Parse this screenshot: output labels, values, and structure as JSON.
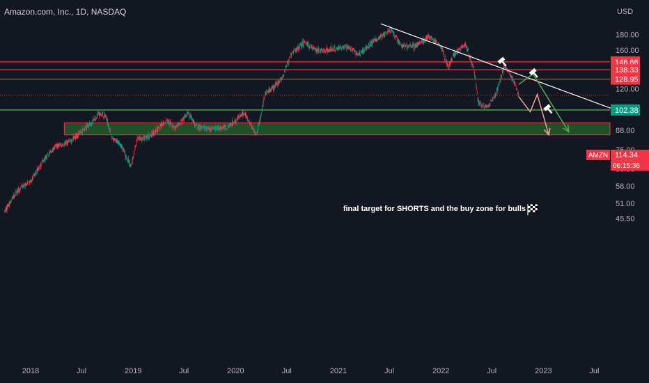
{
  "header": {
    "title": "Amazon.com, Inc., 1D, NASDAQ"
  },
  "price_axis": {
    "currency": "USD",
    "ticks": [
      "180.00",
      "160.00",
      "120.00",
      "88.00",
      "76.00",
      "66.00",
      "58.00",
      "51.00",
      "45.50"
    ]
  },
  "time_axis": {
    "ticks": [
      "2018",
      "Jul",
      "2019",
      "Jul",
      "2020",
      "Jul",
      "2021",
      "Jul",
      "2022",
      "Jul",
      "2023",
      "Jul"
    ]
  },
  "annotation": {
    "text": "final target for SHORTS and the buy zone for bulls",
    "icon": "checkered-flag-icon"
  },
  "level_labels": [
    {
      "price": 146.66,
      "text": "146.66",
      "color": "#f23645"
    },
    {
      "price": 138.33,
      "text": "138.33",
      "color": "#f23645"
    },
    {
      "price": 128.95,
      "text": "128.95",
      "color": "#f23645"
    },
    {
      "price": 102.38,
      "text": "102.38",
      "color": "#089981"
    }
  ],
  "last_price": {
    "symbol": "AMZN",
    "value": "114.34",
    "countdown": "06:15:36",
    "color": "#f23645"
  },
  "colors": {
    "background": "#131722",
    "up_candle": "#089981",
    "down_candle": "#f23645",
    "resistance": "#f23645",
    "support": "#4caf50",
    "zone_fill": "#2e7d32",
    "trendline": "#ffffff",
    "arrow_green": "#4caf50",
    "arrow_pink": "#f7a29a"
  },
  "chart_data": {
    "type": "candlestick",
    "title": "Amazon.com, Inc., 1D, NASDAQ",
    "y_unit": "USD",
    "y_scale": "log",
    "ylim": [
      44,
      215
    ],
    "xlim": [
      "2017-10-01",
      "2023-09-15"
    ],
    "close_series": [
      {
        "date": "2017-10-01",
        "close": 48
      },
      {
        "date": "2017-11-15",
        "close": 56
      },
      {
        "date": "2018-01-01",
        "close": 60
      },
      {
        "date": "2018-02-15",
        "close": 70
      },
      {
        "date": "2018-04-01",
        "close": 78
      },
      {
        "date": "2018-05-15",
        "close": 80
      },
      {
        "date": "2018-06-15",
        "close": 85
      },
      {
        "date": "2018-08-01",
        "close": 92
      },
      {
        "date": "2018-09-01",
        "close": 100
      },
      {
        "date": "2018-09-25",
        "close": 98
      },
      {
        "date": "2018-10-20",
        "close": 82
      },
      {
        "date": "2018-11-15",
        "close": 80
      },
      {
        "date": "2018-12-24",
        "close": 67
      },
      {
        "date": "2019-01-15",
        "close": 82
      },
      {
        "date": "2019-03-01",
        "close": 84
      },
      {
        "date": "2019-05-01",
        "close": 95
      },
      {
        "date": "2019-06-01",
        "close": 89
      },
      {
        "date": "2019-07-15",
        "close": 100
      },
      {
        "date": "2019-08-15",
        "close": 90
      },
      {
        "date": "2019-10-15",
        "close": 89
      },
      {
        "date": "2019-12-01",
        "close": 90
      },
      {
        "date": "2020-02-01",
        "close": 100
      },
      {
        "date": "2020-03-16",
        "close": 85
      },
      {
        "date": "2020-04-15",
        "close": 115
      },
      {
        "date": "2020-05-15",
        "close": 121
      },
      {
        "date": "2020-06-15",
        "close": 130
      },
      {
        "date": "2020-07-15",
        "close": 155
      },
      {
        "date": "2020-09-01",
        "close": 170
      },
      {
        "date": "2020-10-15",
        "close": 160
      },
      {
        "date": "2020-12-01",
        "close": 160
      },
      {
        "date": "2021-02-01",
        "close": 165
      },
      {
        "date": "2021-03-15",
        "close": 155
      },
      {
        "date": "2021-05-01",
        "close": 170
      },
      {
        "date": "2021-07-08",
        "close": 186
      },
      {
        "date": "2021-08-15",
        "close": 165
      },
      {
        "date": "2021-10-01",
        "close": 165
      },
      {
        "date": "2021-11-19",
        "close": 177
      },
      {
        "date": "2022-01-01",
        "close": 165
      },
      {
        "date": "2022-01-28",
        "close": 140
      },
      {
        "date": "2022-02-15",
        "close": 155
      },
      {
        "date": "2022-03-29",
        "close": 168
      },
      {
        "date": "2022-04-28",
        "close": 140
      },
      {
        "date": "2022-05-15",
        "close": 108
      },
      {
        "date": "2022-06-15",
        "close": 104
      },
      {
        "date": "2022-07-15",
        "close": 115
      },
      {
        "date": "2022-08-15",
        "close": 142
      },
      {
        "date": "2022-09-15",
        "close": 128
      },
      {
        "date": "2022-10-05",
        "close": 114.34
      }
    ],
    "horizontal_levels": [
      146.66,
      138.33,
      128.95,
      102.38
    ],
    "zone": {
      "low": 85,
      "high": 93,
      "from": "2018-05-01",
      "to": "2023-09-15"
    },
    "trendline": [
      {
        "date": "2021-06-01",
        "price": 195
      },
      {
        "date": "2023-09-15",
        "price": 102.38
      }
    ],
    "projected_paths": [
      {
        "color": "green",
        "points": [
          {
            "date": "2022-10-05",
            "price": 124
          },
          {
            "date": "2022-11-25",
            "price": 134
          },
          {
            "date": "2023-04-01",
            "price": 87
          }
        ]
      },
      {
        "color": "pink",
        "points": [
          {
            "date": "2022-10-05",
            "price": 113
          },
          {
            "date": "2022-11-15",
            "price": 101
          },
          {
            "date": "2022-12-10",
            "price": 115
          },
          {
            "date": "2023-01-20",
            "price": 85
          }
        ]
      }
    ],
    "markers": [
      {
        "date": "2022-08-05",
        "price": 148
      },
      {
        "date": "2022-11-25",
        "price": 136
      },
      {
        "date": "2023-01-15",
        "price": 104
      }
    ]
  }
}
